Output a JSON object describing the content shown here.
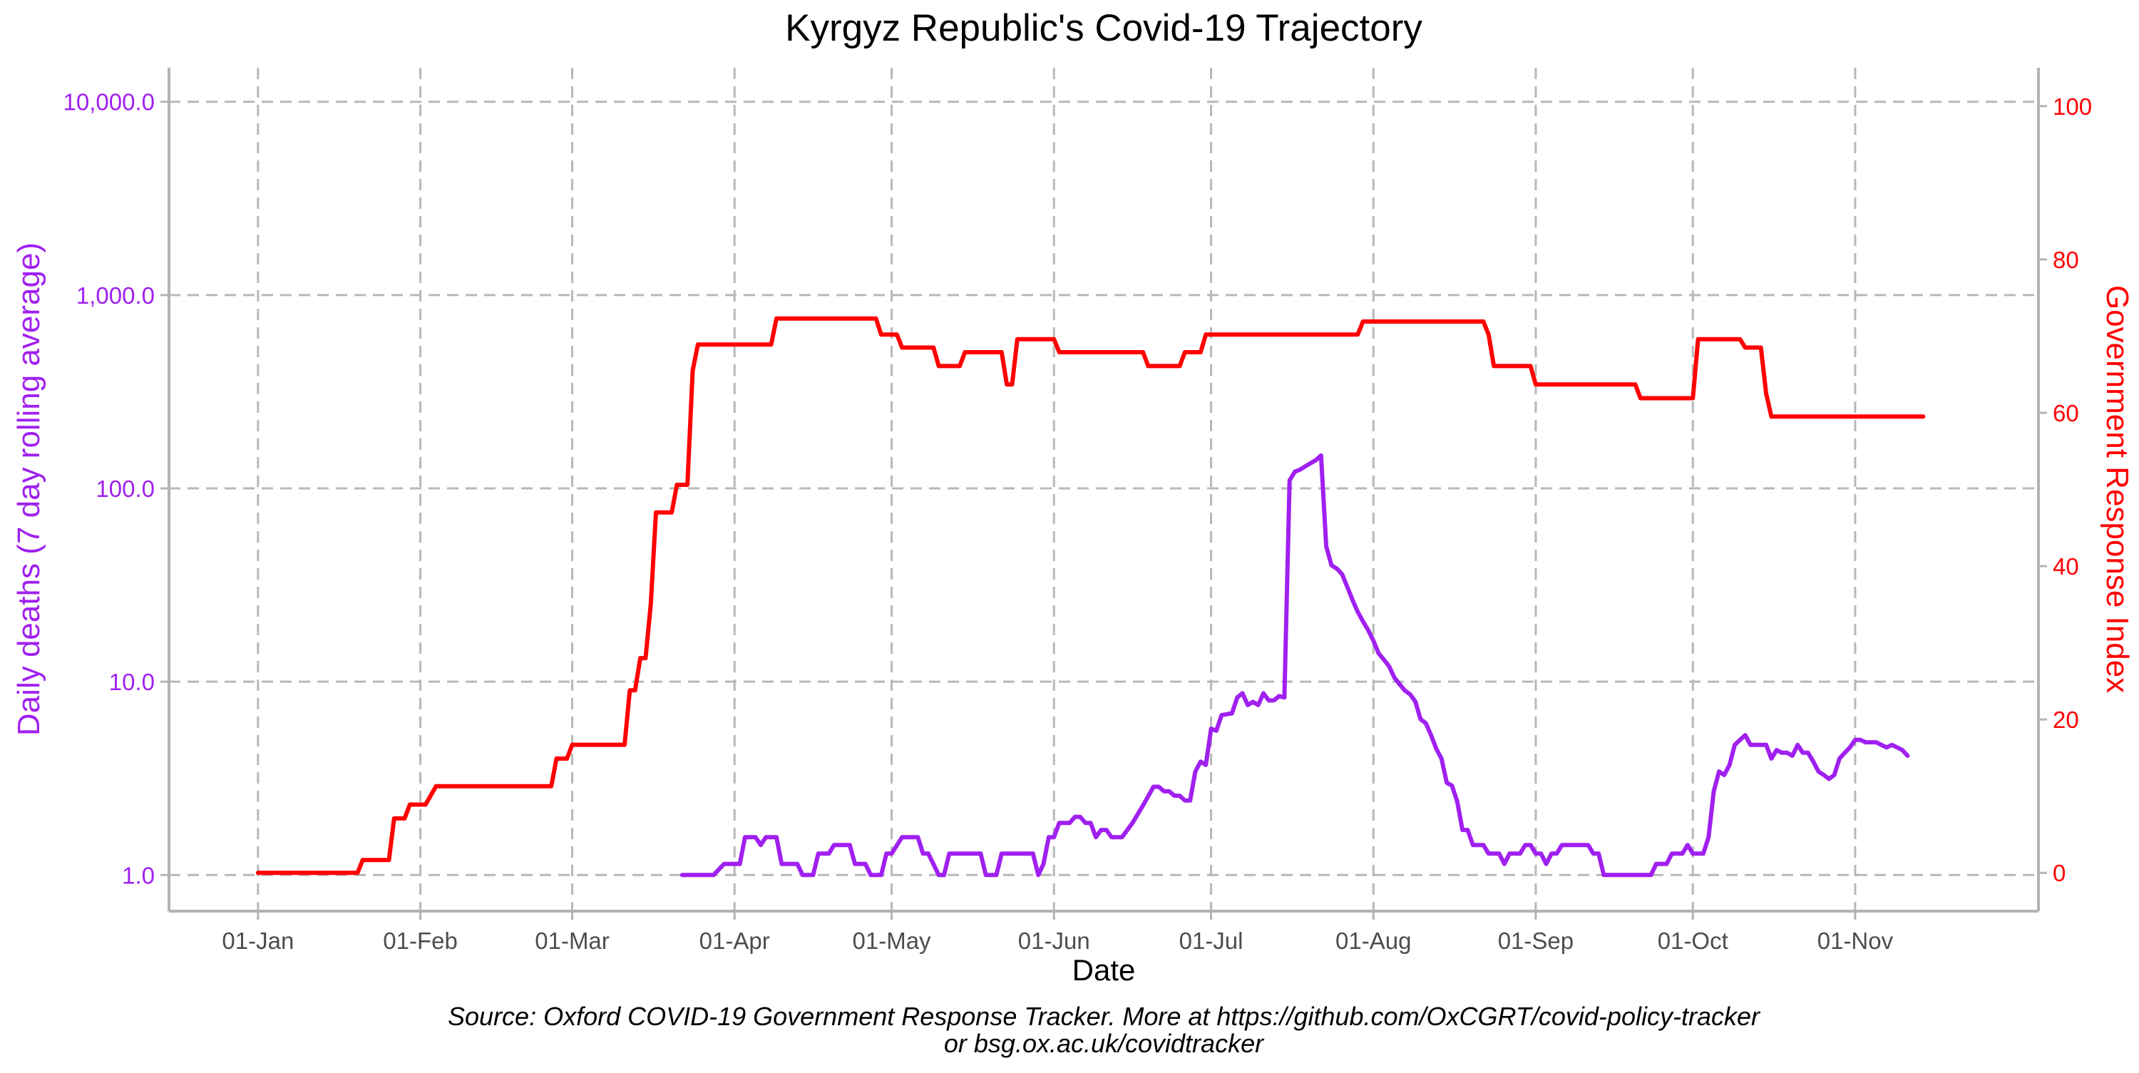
{
  "chart_data": {
    "type": "line",
    "title": "Kyrgyz Republic's Covid-19 Trajectory",
    "xlabel": "Date",
    "ylabel_left": "Daily deaths (7 day rolling average)",
    "ylabel_right": "Government Response Index",
    "caption_line1": "Source: Oxford COVID-19 Government Response Tracker. More at https://github.com/OxCGRT/covid-policy-tracker",
    "caption_line2": "or bsg.ox.ac.uk/covidtracker",
    "x_axis": {
      "type": "date",
      "range": [
        "2019-12-15",
        "2020-12-06"
      ],
      "ticks": [
        {
          "date": "2020-01-01",
          "label": "01-Jan"
        },
        {
          "date": "2020-02-01",
          "label": "01-Feb"
        },
        {
          "date": "2020-03-01",
          "label": "01-Mar"
        },
        {
          "date": "2020-04-01",
          "label": "01-Apr"
        },
        {
          "date": "2020-05-01",
          "label": "01-May"
        },
        {
          "date": "2020-06-01",
          "label": "01-Jun"
        },
        {
          "date": "2020-07-01",
          "label": "01-Jul"
        },
        {
          "date": "2020-08-01",
          "label": "01-Aug"
        },
        {
          "date": "2020-09-01",
          "label": "01-Sep"
        },
        {
          "date": "2020-10-01",
          "label": "01-Oct"
        },
        {
          "date": "2020-11-01",
          "label": "01-Nov"
        }
      ]
    },
    "y_left": {
      "scale": "log10",
      "range": [
        0.65,
        15000
      ],
      "ticks": [
        {
          "value": 1,
          "label": "1.0"
        },
        {
          "value": 10,
          "label": "10.0"
        },
        {
          "value": 100,
          "label": "100.0"
        },
        {
          "value": 1000,
          "label": "1,000.0"
        },
        {
          "value": 10000,
          "label": "10,000.0"
        }
      ],
      "color": "#a020f0"
    },
    "y_right": {
      "scale": "linear",
      "range": [
        -5,
        105
      ],
      "ticks": [
        {
          "value": 0,
          "label": "0"
        },
        {
          "value": 20,
          "label": "20"
        },
        {
          "value": 40,
          "label": "40"
        },
        {
          "value": 60,
          "label": "60"
        },
        {
          "value": 80,
          "label": "80"
        },
        {
          "value": 100,
          "label": "100"
        }
      ],
      "color": "#ff0000"
    },
    "grid": true,
    "legend": "none",
    "series": [
      {
        "axis": "left",
        "color": "#a020f0",
        "points": [
          [
            "2020-03-22",
            1.0
          ],
          [
            "2020-03-28",
            1.0
          ],
          [
            "2020-03-30",
            1.14
          ],
          [
            "2020-04-02",
            1.14
          ],
          [
            "2020-04-03",
            1.57
          ],
          [
            "2020-04-05",
            1.57
          ],
          [
            "2020-04-06",
            1.43
          ],
          [
            "2020-04-07",
            1.57
          ],
          [
            "2020-04-09",
            1.57
          ],
          [
            "2020-04-10",
            1.14
          ],
          [
            "2020-04-13",
            1.14
          ],
          [
            "2020-04-14",
            1.0
          ],
          [
            "2020-04-16",
            1.0
          ],
          [
            "2020-04-17",
            1.29
          ],
          [
            "2020-04-19",
            1.29
          ],
          [
            "2020-04-20",
            1.43
          ],
          [
            "2020-04-23",
            1.43
          ],
          [
            "2020-04-24",
            1.14
          ],
          [
            "2020-04-26",
            1.14
          ],
          [
            "2020-04-27",
            1.0
          ],
          [
            "2020-04-29",
            1.0
          ],
          [
            "2020-04-30",
            1.29
          ],
          [
            "2020-05-01",
            1.29
          ],
          [
            "2020-05-03",
            1.57
          ],
          [
            "2020-05-06",
            1.57
          ],
          [
            "2020-05-07",
            1.29
          ],
          [
            "2020-05-08",
            1.29
          ],
          [
            "2020-05-10",
            1.0
          ],
          [
            "2020-05-11",
            1.0
          ],
          [
            "2020-05-12",
            1.29
          ],
          [
            "2020-05-18",
            1.29
          ],
          [
            "2020-05-19",
            1.0
          ],
          [
            "2020-05-21",
            1.0
          ],
          [
            "2020-05-22",
            1.29
          ],
          [
            "2020-05-28",
            1.29
          ],
          [
            "2020-05-29",
            1.0
          ],
          [
            "2020-05-30",
            1.14
          ],
          [
            "2020-05-31",
            1.57
          ],
          [
            "2020-06-01",
            1.57
          ],
          [
            "2020-06-02",
            1.86
          ],
          [
            "2020-06-04",
            1.86
          ],
          [
            "2020-06-05",
            2.0
          ],
          [
            "2020-06-06",
            2.0
          ],
          [
            "2020-06-07",
            1.86
          ],
          [
            "2020-06-08",
            1.86
          ],
          [
            "2020-06-09",
            1.57
          ],
          [
            "2020-06-10",
            1.71
          ],
          [
            "2020-06-11",
            1.71
          ],
          [
            "2020-06-12",
            1.57
          ],
          [
            "2020-06-14",
            1.57
          ],
          [
            "2020-06-16",
            1.86
          ],
          [
            "2020-06-18",
            2.29
          ],
          [
            "2020-06-20",
            2.86
          ],
          [
            "2020-06-21",
            2.86
          ],
          [
            "2020-06-22",
            2.71
          ],
          [
            "2020-06-23",
            2.71
          ],
          [
            "2020-06-24",
            2.57
          ],
          [
            "2020-06-25",
            2.57
          ],
          [
            "2020-06-26",
            2.43
          ],
          [
            "2020-06-27",
            2.43
          ],
          [
            "2020-06-28",
            3.43
          ],
          [
            "2020-06-29",
            3.86
          ],
          [
            "2020-06-30",
            3.71
          ],
          [
            "2020-07-01",
            5.71
          ],
          [
            "2020-07-02",
            5.57
          ],
          [
            "2020-07-03",
            6.71
          ],
          [
            "2020-07-05",
            6.86
          ],
          [
            "2020-07-06",
            8.29
          ],
          [
            "2020-07-07",
            8.71
          ],
          [
            "2020-07-08",
            7.57
          ],
          [
            "2020-07-09",
            7.86
          ],
          [
            "2020-07-10",
            7.57
          ],
          [
            "2020-07-11",
            8.71
          ],
          [
            "2020-07-12",
            8.0
          ],
          [
            "2020-07-13",
            8.0
          ],
          [
            "2020-07-14",
            8.43
          ],
          [
            "2020-07-15",
            8.29
          ],
          [
            "2020-07-16",
            110
          ],
          [
            "2020-07-17",
            122
          ],
          [
            "2020-07-18",
            125
          ],
          [
            "2020-07-19",
            130
          ],
          [
            "2020-07-20",
            135
          ],
          [
            "2020-07-21",
            140
          ],
          [
            "2020-07-22",
            148
          ],
          [
            "2020-07-23",
            50
          ],
          [
            "2020-07-24",
            40
          ],
          [
            "2020-07-25",
            38.5
          ],
          [
            "2020-07-26",
            36
          ],
          [
            "2020-07-27",
            31
          ],
          [
            "2020-07-28",
            26.5
          ],
          [
            "2020-07-29",
            23
          ],
          [
            "2020-07-30",
            20.5
          ],
          [
            "2020-07-31",
            18.5
          ],
          [
            "2020-08-01",
            16.3
          ],
          [
            "2020-08-02",
            14
          ],
          [
            "2020-08-03",
            13
          ],
          [
            "2020-08-04",
            12
          ],
          [
            "2020-08-05",
            10.5
          ],
          [
            "2020-08-06",
            9.7
          ],
          [
            "2020-08-07",
            9.0
          ],
          [
            "2020-08-08",
            8.6
          ],
          [
            "2020-08-09",
            7.9
          ],
          [
            "2020-08-10",
            6.4
          ],
          [
            "2020-08-11",
            6.1
          ],
          [
            "2020-08-12",
            5.3
          ],
          [
            "2020-08-13",
            4.5
          ],
          [
            "2020-08-14",
            4.0
          ],
          [
            "2020-08-15",
            3.0
          ],
          [
            "2020-08-16",
            2.9
          ],
          [
            "2020-08-17",
            2.4
          ],
          [
            "2020-08-18",
            1.71
          ],
          [
            "2020-08-19",
            1.71
          ],
          [
            "2020-08-20",
            1.43
          ],
          [
            "2020-08-22",
            1.43
          ],
          [
            "2020-08-23",
            1.29
          ],
          [
            "2020-08-25",
            1.29
          ],
          [
            "2020-08-26",
            1.14
          ],
          [
            "2020-08-27",
            1.29
          ],
          [
            "2020-08-29",
            1.29
          ],
          [
            "2020-08-30",
            1.43
          ],
          [
            "2020-08-31",
            1.43
          ],
          [
            "2020-09-01",
            1.29
          ],
          [
            "2020-09-02",
            1.29
          ],
          [
            "2020-09-03",
            1.14
          ],
          [
            "2020-09-04",
            1.29
          ],
          [
            "2020-09-05",
            1.29
          ],
          [
            "2020-09-06",
            1.43
          ],
          [
            "2020-09-11",
            1.43
          ],
          [
            "2020-09-12",
            1.29
          ],
          [
            "2020-09-13",
            1.29
          ],
          [
            "2020-09-14",
            1.0
          ],
          [
            "2020-09-23",
            1.0
          ],
          [
            "2020-09-24",
            1.14
          ],
          [
            "2020-09-26",
            1.14
          ],
          [
            "2020-09-27",
            1.29
          ],
          [
            "2020-09-29",
            1.29
          ],
          [
            "2020-09-30",
            1.43
          ],
          [
            "2020-10-01",
            1.29
          ],
          [
            "2020-10-03",
            1.29
          ],
          [
            "2020-10-04",
            1.57
          ],
          [
            "2020-10-05",
            2.71
          ],
          [
            "2020-10-06",
            3.43
          ],
          [
            "2020-10-07",
            3.29
          ],
          [
            "2020-10-08",
            3.71
          ],
          [
            "2020-10-09",
            4.71
          ],
          [
            "2020-10-10",
            5.0
          ],
          [
            "2020-10-11",
            5.29
          ],
          [
            "2020-10-12",
            4.71
          ],
          [
            "2020-10-15",
            4.71
          ],
          [
            "2020-10-16",
            4.0
          ],
          [
            "2020-10-17",
            4.43
          ],
          [
            "2020-10-18",
            4.29
          ],
          [
            "2020-10-19",
            4.29
          ],
          [
            "2020-10-20",
            4.14
          ],
          [
            "2020-10-21",
            4.71
          ],
          [
            "2020-10-22",
            4.29
          ],
          [
            "2020-10-23",
            4.29
          ],
          [
            "2020-10-24",
            3.86
          ],
          [
            "2020-10-25",
            3.43
          ],
          [
            "2020-10-26",
            3.29
          ],
          [
            "2020-10-27",
            3.14
          ],
          [
            "2020-10-28",
            3.29
          ],
          [
            "2020-10-29",
            4.0
          ],
          [
            "2020-10-30",
            4.29
          ],
          [
            "2020-10-31",
            4.57
          ],
          [
            "2020-11-01",
            5.0
          ],
          [
            "2020-11-02",
            5.0
          ],
          [
            "2020-11-03",
            4.86
          ],
          [
            "2020-11-05",
            4.86
          ],
          [
            "2020-11-06",
            4.71
          ],
          [
            "2020-11-07",
            4.57
          ],
          [
            "2020-11-08",
            4.71
          ],
          [
            "2020-11-09",
            4.57
          ],
          [
            "2020-11-10",
            4.43
          ],
          [
            "2020-11-11",
            4.14
          ]
        ]
      },
      {
        "axis": "right",
        "color": "#ff0000",
        "points": [
          [
            "2020-01-01",
            0
          ],
          [
            "2020-01-20",
            0
          ],
          [
            "2020-01-21",
            1.67
          ],
          [
            "2020-01-26",
            1.67
          ],
          [
            "2020-01-27",
            7.1
          ],
          [
            "2020-01-29",
            7.1
          ],
          [
            "2020-01-30",
            8.9
          ],
          [
            "2020-02-02",
            8.9
          ],
          [
            "2020-02-04",
            11.3
          ],
          [
            "2020-02-26",
            11.3
          ],
          [
            "2020-02-27",
            14.9
          ],
          [
            "2020-02-29",
            14.9
          ],
          [
            "2020-03-01",
            16.7
          ],
          [
            "2020-03-11",
            16.7
          ],
          [
            "2020-03-12",
            23.8
          ],
          [
            "2020-03-13",
            23.8
          ],
          [
            "2020-03-14",
            28.0
          ],
          [
            "2020-03-15",
            28.0
          ],
          [
            "2020-03-16",
            35.0
          ],
          [
            "2020-03-17",
            47.0
          ],
          [
            "2020-03-20",
            47.0
          ],
          [
            "2020-03-21",
            50.6
          ],
          [
            "2020-03-23",
            50.6
          ],
          [
            "2020-03-24",
            65.5
          ],
          [
            "2020-03-25",
            68.9
          ],
          [
            "2020-04-08",
            68.9
          ],
          [
            "2020-04-09",
            72.3
          ],
          [
            "2020-04-28",
            72.3
          ],
          [
            "2020-04-29",
            70.2
          ],
          [
            "2020-05-02",
            70.2
          ],
          [
            "2020-05-03",
            68.5
          ],
          [
            "2020-05-09",
            68.5
          ],
          [
            "2020-05-10",
            66.1
          ],
          [
            "2020-05-14",
            66.1
          ],
          [
            "2020-05-15",
            67.9
          ],
          [
            "2020-05-22",
            67.9
          ],
          [
            "2020-05-23",
            63.7
          ],
          [
            "2020-05-24",
            63.7
          ],
          [
            "2020-05-25",
            69.6
          ],
          [
            "2020-06-01",
            69.6
          ],
          [
            "2020-06-02",
            67.9
          ],
          [
            "2020-06-18",
            67.9
          ],
          [
            "2020-06-19",
            66.1
          ],
          [
            "2020-06-25",
            66.1
          ],
          [
            "2020-06-26",
            67.9
          ],
          [
            "2020-06-29",
            67.9
          ],
          [
            "2020-06-30",
            70.2
          ],
          [
            "2020-07-29",
            70.2
          ],
          [
            "2020-07-30",
            71.9
          ],
          [
            "2020-08-22",
            71.9
          ],
          [
            "2020-08-23",
            70.2
          ],
          [
            "2020-08-24",
            66.1
          ],
          [
            "2020-08-31",
            66.1
          ],
          [
            "2020-09-01",
            63.7
          ],
          [
            "2020-09-20",
            63.7
          ],
          [
            "2020-09-21",
            61.9
          ],
          [
            "2020-10-01",
            61.9
          ],
          [
            "2020-10-02",
            69.6
          ],
          [
            "2020-10-10",
            69.6
          ],
          [
            "2020-10-11",
            68.5
          ],
          [
            "2020-10-14",
            68.5
          ],
          [
            "2020-10-15",
            62.5
          ],
          [
            "2020-10-16",
            59.5
          ],
          [
            "2020-11-14",
            59.5
          ]
        ]
      }
    ]
  }
}
